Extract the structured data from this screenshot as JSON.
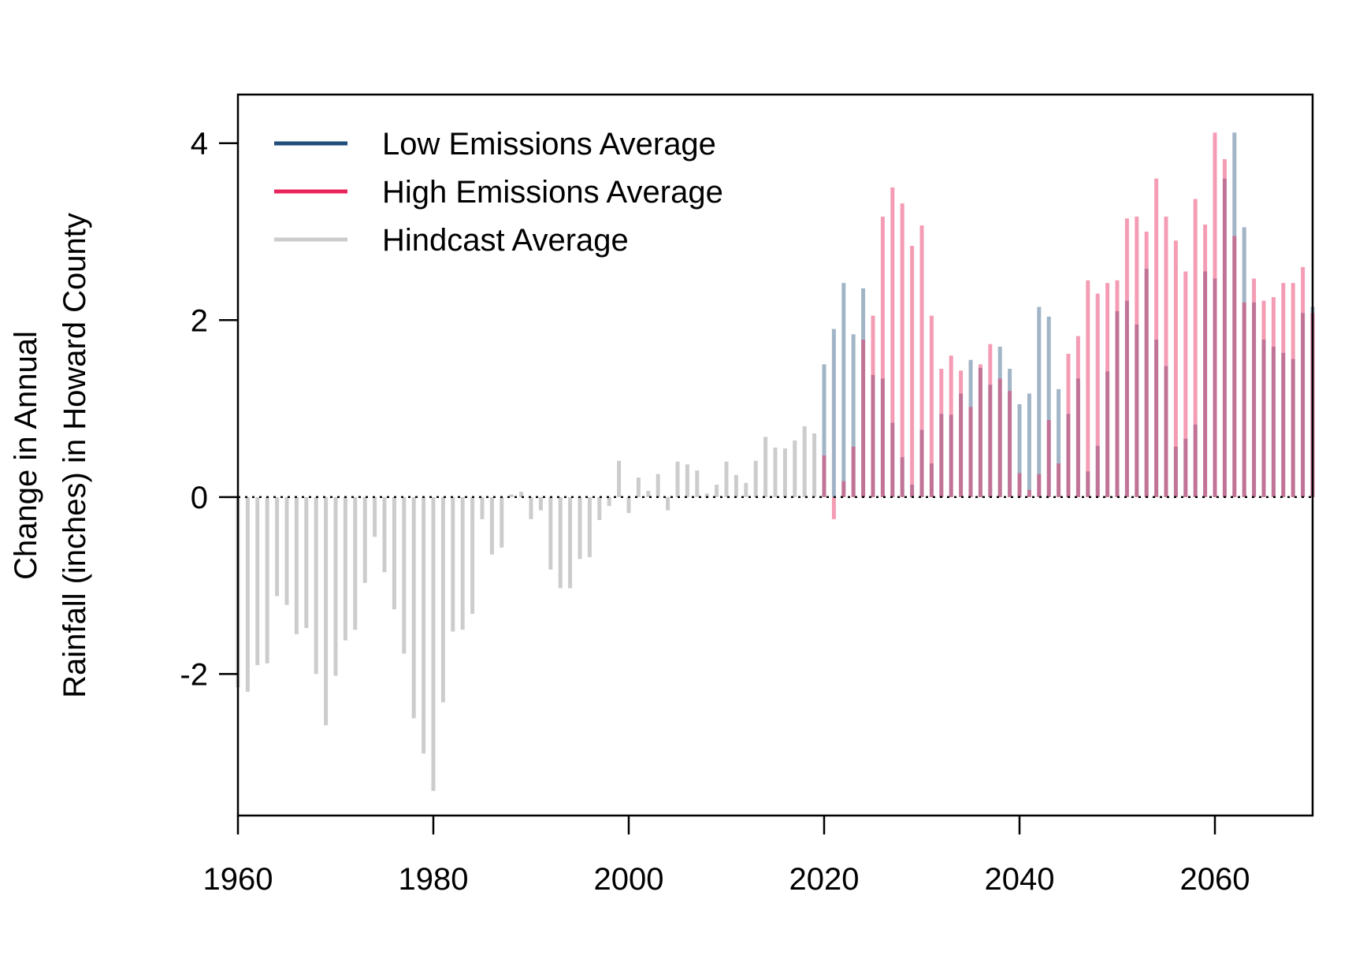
{
  "chart_data": {
    "type": "bar",
    "ylabel_line1": "Change in Annual",
    "ylabel_line2": "Rainfall (inches) in Howard County",
    "xlabel": "",
    "xlim": [
      1960,
      2070
    ],
    "ylim": [
      -3.6,
      4.55
    ],
    "x_ticks": [
      1960,
      1980,
      2000,
      2020,
      2040,
      2060
    ],
    "y_ticks": [
      -2,
      0,
      2,
      4
    ],
    "legend": {
      "position": "top-left",
      "entries": [
        {
          "label": "Low Emissions Average",
          "color": "#1f4e79"
        },
        {
          "label": "High Emissions Average",
          "color": "#e8245c"
        },
        {
          "label": "Hindcast Average",
          "color": "#cccccc"
        }
      ]
    },
    "series": [
      {
        "name": "Hindcast Average",
        "color": "#cccccc",
        "x_start": 1960,
        "values": [
          -2.15,
          -2.2,
          -1.9,
          -1.88,
          -1.12,
          -1.22,
          -1.55,
          -1.48,
          -2.0,
          -2.58,
          -2.02,
          -1.62,
          -1.5,
          -0.97,
          -0.45,
          -0.85,
          -1.27,
          -1.77,
          -2.5,
          -2.9,
          -3.32,
          -2.32,
          -1.52,
          -1.5,
          -1.32,
          -0.25,
          -0.65,
          -0.57,
          0.03,
          0.06,
          -0.25,
          -0.15,
          -0.82,
          -1.03,
          -1.03,
          -0.7,
          -0.68,
          -0.26,
          -0.1,
          0.41,
          -0.18,
          0.22,
          0.07,
          0.26,
          -0.15,
          0.4,
          0.37,
          0.3,
          0.04,
          0.14,
          0.4,
          0.25,
          0.16,
          0.41,
          0.68,
          0.56,
          0.55,
          0.64,
          0.8,
          0.72
        ]
      },
      {
        "name": "Low Emissions Average",
        "color": "#1f4e79",
        "x_start": 2020,
        "values": [
          1.5,
          1.9,
          2.42,
          1.84,
          2.36,
          1.38,
          1.34,
          0.84,
          0.45,
          0.14,
          0.76,
          0.38,
          0.94,
          0.93,
          1.17,
          1.55,
          1.46,
          1.27,
          1.7,
          1.45,
          1.05,
          1.17,
          2.15,
          2.04,
          1.22,
          0.94,
          1.34,
          0.29,
          0.58,
          1.42,
          2.1,
          2.22,
          1.95,
          2.58,
          1.78,
          1.48,
          0.57,
          0.66,
          0.82,
          2.55,
          2.47,
          3.6,
          4.12,
          3.05,
          2.2,
          1.78,
          1.7,
          1.63,
          1.56,
          2.08,
          2.15,
          2.42
        ]
      },
      {
        "name": "High Emissions Average",
        "color": "#e8245c",
        "x_start": 2020,
        "values": [
          0.47,
          -0.25,
          0.18,
          0.57,
          1.78,
          2.05,
          3.17,
          3.5,
          3.32,
          2.84,
          3.07,
          2.05,
          1.45,
          1.6,
          1.43,
          1.02,
          1.5,
          1.73,
          1.34,
          1.2,
          0.27,
          0.08,
          0.26,
          0.87,
          0.38,
          1.62,
          1.82,
          2.45,
          2.3,
          2.42,
          2.45,
          3.15,
          3.17,
          3.0,
          3.6,
          3.17,
          2.9,
          2.55,
          3.37,
          3.08,
          4.12,
          3.82,
          2.95,
          2.2,
          2.47,
          2.22,
          2.26,
          2.42,
          2.42,
          2.6,
          2.08,
          2.25
        ]
      }
    ]
  }
}
